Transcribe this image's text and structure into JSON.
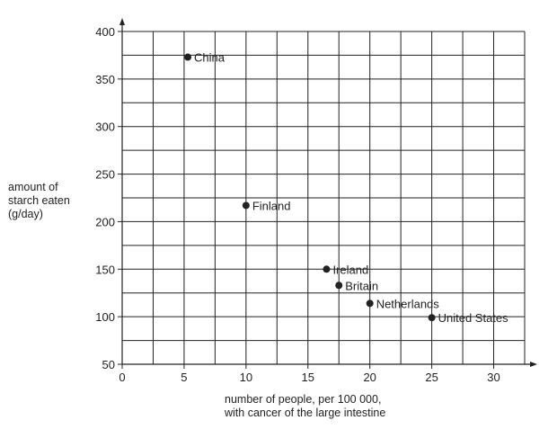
{
  "chart_data": {
    "type": "scatter",
    "title": "",
    "xlabel_lines": [
      "number of people, per 100 000,",
      "with cancer of the large intestine"
    ],
    "ylabel_lines": [
      "amount of",
      "starch eaten",
      "(g/day)"
    ],
    "xlim": [
      0,
      32.5
    ],
    "ylim": [
      50,
      400
    ],
    "x_ticks": [
      0,
      5,
      10,
      15,
      20,
      25,
      30
    ],
    "y_ticks": [
      50,
      100,
      150,
      200,
      250,
      300,
      350,
      400
    ],
    "grid": true,
    "points": [
      {
        "label": "China",
        "x": 5.3,
        "y": 373
      },
      {
        "label": "Finland",
        "x": 10.0,
        "y": 217
      },
      {
        "label": "Ireland",
        "x": 16.5,
        "y": 150
      },
      {
        "label": "Britain",
        "x": 17.5,
        "y": 133
      },
      {
        "label": "Netherlands",
        "x": 20.0,
        "y": 114
      },
      {
        "label": "United States",
        "x": 25.0,
        "y": 99
      }
    ],
    "point_color": "#222222",
    "grid_color": "#222222"
  }
}
